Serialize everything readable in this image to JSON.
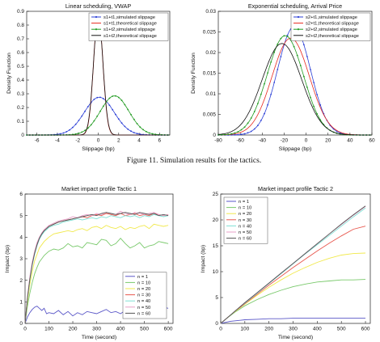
{
  "caption": "Figure 11.  Simulation results for the tactics.",
  "chart_data": [
    {
      "type": "line",
      "title": "Linear scheduling, VWAP",
      "xlabel": "Slippage (bp)",
      "ylabel": "Density Function",
      "xlim": [
        -7,
        7
      ],
      "ylim": [
        0,
        0.9
      ],
      "xticks": [
        -6,
        -4,
        -2,
        0,
        2,
        4,
        6
      ],
      "yticks": [
        0,
        0.1,
        0.2,
        0.3,
        0.4,
        0.5,
        0.6,
        0.7,
        0.8,
        0.9
      ],
      "legend_position": "top-right",
      "series": [
        {
          "name": "s1+t1,simulated slippage",
          "color": "#2b3fd6",
          "style": "dots",
          "mean": 0.1,
          "sd": 1.45,
          "peak": 0.275
        },
        {
          "name": "s1+t1,theoretical slippage",
          "color": "#e8281e",
          "style": "line",
          "mean": 0.0,
          "sd": 0.45,
          "peak": 0.885
        },
        {
          "name": "s1+t2,simulated slippage",
          "color": "#1f9a1f",
          "style": "dots",
          "mean": 1.6,
          "sd": 1.4,
          "peak": 0.285
        },
        {
          "name": "s1+t2,theoretical slippage",
          "color": "#111111",
          "style": "line",
          "mean": 0.0,
          "sd": 0.46,
          "peak": 0.87
        }
      ]
    },
    {
      "type": "line",
      "title": "Exponential scheduling, Arrival Price",
      "xlabel": "Slippage (bp)",
      "ylabel": "Density Function",
      "xlim": [
        -80,
        60
      ],
      "ylim": [
        0,
        0.03
      ],
      "xticks": [
        -80,
        -60,
        -40,
        -20,
        0,
        20,
        40,
        60
      ],
      "yticks": [
        0,
        0.005,
        0.01,
        0.015,
        0.02,
        0.025,
        0.03
      ],
      "ytick_labels": [
        "0",
        "0.005",
        "0.01",
        "0.015",
        "0.02",
        "0.025",
        "0.03"
      ],
      "legend_position": "top-right",
      "series": [
        {
          "name": "s2+t1,simulated slippage",
          "color": "#2b3fd6",
          "style": "dots",
          "mean": -11,
          "sd": 15,
          "peak": 0.0262
        },
        {
          "name": "s2+t1,theoretical slippage",
          "color": "#e8281e",
          "style": "line",
          "mean": -14,
          "sd": 17,
          "peak": 0.0235
        },
        {
          "name": "s2+t2,simulated slippage",
          "color": "#1f9a1f",
          "style": "dots",
          "mean": -19,
          "sd": 16.5,
          "peak": 0.0241
        },
        {
          "name": "s2+t2,theoretical slippage",
          "color": "#111111",
          "style": "line",
          "mean": -22,
          "sd": 18,
          "peak": 0.0222
        }
      ]
    },
    {
      "type": "line",
      "title": "Market impact profile Tactic 1",
      "xlabel": "Time (second)",
      "ylabel": "Impact (bp)",
      "xlim": [
        0,
        620
      ],
      "ylim": [
        0,
        6
      ],
      "xticks": [
        0,
        100,
        200,
        300,
        400,
        500,
        600
      ],
      "yticks": [
        0,
        1,
        2,
        3,
        4,
        5,
        6
      ],
      "legend_position": "bottom-right",
      "x": [
        0,
        10,
        20,
        30,
        40,
        50,
        60,
        70,
        80,
        90,
        100,
        120,
        140,
        160,
        180,
        200,
        220,
        240,
        260,
        280,
        300,
        320,
        340,
        360,
        380,
        400,
        420,
        440,
        460,
        480,
        500,
        520,
        540,
        560,
        580,
        600
      ],
      "series": [
        {
          "name": "n = 1",
          "color": "#5a57c8",
          "values": [
            0.0,
            0.3,
            0.5,
            0.65,
            0.75,
            0.8,
            0.7,
            0.6,
            0.7,
            0.45,
            0.5,
            0.45,
            0.6,
            0.4,
            0.55,
            0.35,
            0.5,
            0.4,
            0.55,
            0.5,
            0.45,
            0.55,
            0.65,
            0.5,
            0.55,
            0.45,
            0.6,
            0.55,
            0.6,
            0.55,
            0.65,
            0.6,
            0.75,
            0.7,
            0.75,
            0.7
          ]
        },
        {
          "name": "n = 10",
          "color": "#79c96b",
          "values": [
            0.0,
            0.8,
            1.4,
            1.9,
            2.3,
            2.6,
            2.85,
            3.0,
            3.15,
            3.25,
            3.35,
            3.45,
            3.4,
            3.5,
            3.7,
            3.55,
            3.6,
            3.5,
            3.75,
            3.7,
            3.65,
            3.9,
            3.85,
            3.6,
            3.7,
            3.95,
            3.7,
            3.5,
            3.6,
            3.75,
            3.5,
            3.6,
            3.65,
            3.8,
            3.75,
            3.7
          ]
        },
        {
          "name": "n = 20",
          "color": "#f1e94c",
          "values": [
            0.0,
            1.0,
            1.8,
            2.4,
            2.9,
            3.2,
            3.5,
            3.65,
            3.8,
            3.9,
            4.0,
            4.15,
            4.2,
            4.25,
            4.3,
            4.25,
            4.35,
            4.4,
            4.3,
            4.45,
            4.5,
            4.4,
            4.55,
            4.45,
            4.4,
            4.5,
            4.35,
            4.45,
            4.4,
            4.5,
            4.55,
            4.4,
            4.6,
            4.55,
            4.5,
            4.55
          ]
        },
        {
          "name": "n = 30",
          "color": "#e8574e",
          "values": [
            0.0,
            1.2,
            2.1,
            2.8,
            3.3,
            3.7,
            3.95,
            4.15,
            4.3,
            4.4,
            4.5,
            4.6,
            4.7,
            4.75,
            4.8,
            4.85,
            4.9,
            4.95,
            4.9,
            5.0,
            5.05,
            5.0,
            5.1,
            5.05,
            5.0,
            5.1,
            5.0,
            5.05,
            5.1,
            5.0,
            5.05,
            5.0,
            5.1,
            5.05,
            5.0,
            5.05
          ]
        },
        {
          "name": "n = 40",
          "color": "#7fe0d4",
          "values": [
            0.0,
            1.15,
            2.0,
            2.7,
            3.2,
            3.6,
            3.9,
            4.1,
            4.25,
            4.35,
            4.45,
            4.55,
            4.6,
            4.7,
            4.75,
            4.8,
            4.85,
            4.8,
            4.85,
            4.9,
            4.85,
            4.95,
            4.9,
            5.0,
            4.95,
            4.9,
            5.0,
            4.95,
            5.0,
            4.9,
            5.0,
            4.95,
            5.05,
            5.0,
            4.95,
            5.0
          ]
        },
        {
          "name": "n = 50",
          "color": "#e8a0c8",
          "values": [
            0.0,
            1.25,
            2.15,
            2.85,
            3.35,
            3.75,
            4.0,
            4.2,
            4.35,
            4.45,
            4.55,
            4.65,
            4.75,
            4.8,
            4.85,
            4.95,
            4.9,
            5.0,
            5.05,
            5.0,
            5.1,
            5.05,
            5.15,
            5.1,
            5.05,
            5.2,
            5.1,
            5.05,
            5.15,
            5.1,
            5.05,
            5.1,
            5.15,
            5.05,
            5.0,
            5.05
          ]
        },
        {
          "name": "n = 60",
          "color": "#555555",
          "values": [
            0.0,
            1.2,
            2.05,
            2.75,
            3.25,
            3.65,
            3.95,
            4.15,
            4.3,
            4.4,
            4.5,
            4.6,
            4.7,
            4.75,
            4.8,
            4.85,
            4.9,
            4.95,
            5.0,
            5.05,
            5.0,
            5.1,
            5.15,
            5.1,
            5.05,
            5.1,
            5.15,
            5.1,
            5.05,
            5.15,
            5.1,
            5.05,
            5.1,
            5.0,
            5.05,
            5.0
          ]
        }
      ]
    },
    {
      "type": "line",
      "title": "Market impact profile Tactic 2",
      "xlabel": "Time (second)",
      "ylabel": "Impact (bp)",
      "xlim": [
        0,
        620
      ],
      "ylim": [
        0,
        25
      ],
      "xticks": [
        0,
        100,
        200,
        300,
        400,
        500,
        600
      ],
      "yticks": [
        0,
        5,
        10,
        15,
        20,
        25
      ],
      "legend_position": "top-left",
      "x": [
        0,
        20,
        40,
        60,
        80,
        100,
        150,
        200,
        250,
        300,
        350,
        400,
        450,
        500,
        550,
        600
      ],
      "series": [
        {
          "name": "n = 1",
          "color": "#5a57c8",
          "values": [
            0,
            0.2,
            0.4,
            0.5,
            0.6,
            0.7,
            0.8,
            0.9,
            0.9,
            1.0,
            1.0,
            1.0,
            1.0,
            1.0,
            1.0,
            1.0
          ]
        },
        {
          "name": "n = 10",
          "color": "#79c96b",
          "values": [
            0,
            0.8,
            1.5,
            2.2,
            2.8,
            3.4,
            4.6,
            5.6,
            6.4,
            7.1,
            7.6,
            8.0,
            8.2,
            8.4,
            8.4,
            8.5
          ]
        },
        {
          "name": "n = 20",
          "color": "#f1e94c",
          "values": [
            0,
            0.8,
            1.6,
            2.3,
            3.0,
            3.7,
            5.4,
            7.0,
            8.4,
            9.7,
            10.8,
            11.8,
            12.6,
            13.2,
            13.5,
            13.6
          ]
        },
        {
          "name": "n = 30",
          "color": "#e8574e",
          "values": [
            0,
            0.8,
            1.6,
            2.4,
            3.1,
            3.8,
            5.6,
            7.4,
            9.1,
            10.8,
            12.4,
            14.0,
            15.5,
            16.9,
            18.2,
            18.8
          ]
        },
        {
          "name": "n = 40",
          "color": "#7fe0d4",
          "values": [
            0,
            0.8,
            1.6,
            2.4,
            3.2,
            3.9,
            5.8,
            7.7,
            9.6,
            11.5,
            13.4,
            15.2,
            17.0,
            18.8,
            20.6,
            22.3
          ]
        },
        {
          "name": "n = 50",
          "color": "#e8a0c8",
          "values": [
            0,
            0.8,
            1.6,
            2.4,
            3.2,
            4.0,
            5.9,
            7.8,
            9.7,
            11.6,
            13.5,
            15.4,
            17.3,
            19.1,
            20.9,
            22.6
          ]
        },
        {
          "name": "n = 60",
          "color": "#555555",
          "values": [
            0,
            0.8,
            1.6,
            2.4,
            3.2,
            4.0,
            5.9,
            7.8,
            9.7,
            11.6,
            13.5,
            15.4,
            17.3,
            19.2,
            21.0,
            22.7
          ]
        }
      ]
    }
  ]
}
